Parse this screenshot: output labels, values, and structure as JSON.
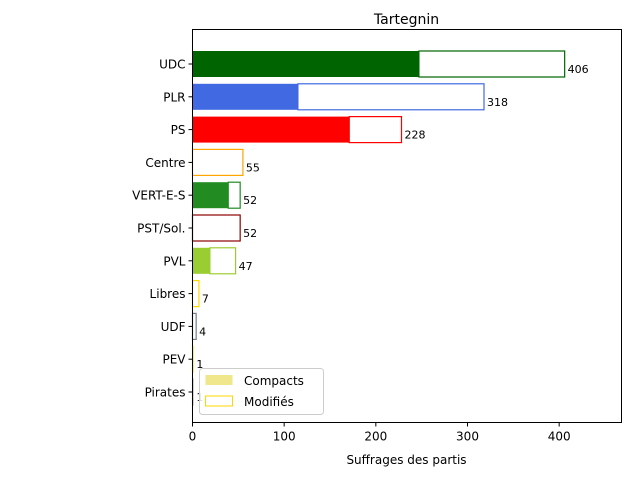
{
  "chart_data": {
    "type": "bar",
    "orientation": "horizontal",
    "title": "Tartegnin",
    "xlabel": "Suffrages des partis",
    "ylabel": "",
    "xlim": [
      0,
      468
    ],
    "x_ticks": [
      0,
      100,
      200,
      300,
      400
    ],
    "legend": {
      "placement": "lower-left",
      "entries": [
        {
          "label": "Compacts",
          "style": "filled",
          "color": "#f0e68c"
        },
        {
          "label": "Modifiés",
          "style": "outline",
          "color": "#ffd700"
        }
      ]
    },
    "categories": [
      "UDC",
      "PLR",
      "PS",
      "Centre",
      "VERT-E-S",
      "PST/Sol.",
      "PVL",
      "Libres",
      "UDF",
      "PEV",
      "Pirates"
    ],
    "series": [
      {
        "name": "Compacts",
        "values": [
          247,
          115,
          171,
          0,
          39,
          0,
          19,
          0,
          0,
          0,
          0
        ]
      },
      {
        "name": "Modifiés",
        "values": [
          159,
          203,
          57,
          55,
          13,
          52,
          28,
          7,
          4,
          1,
          1
        ]
      }
    ],
    "totals": [
      406,
      318,
      228,
      55,
      52,
      52,
      47,
      7,
      4,
      1,
      1
    ],
    "colors": [
      "#006400",
      "#4169e1",
      "#ff0000",
      "#ffa500",
      "#228b22",
      "#8b0000",
      "#9acd32",
      "#ffd700",
      "#708090",
      "#ffff00",
      "#d3d3d3"
    ],
    "grid": false
  }
}
